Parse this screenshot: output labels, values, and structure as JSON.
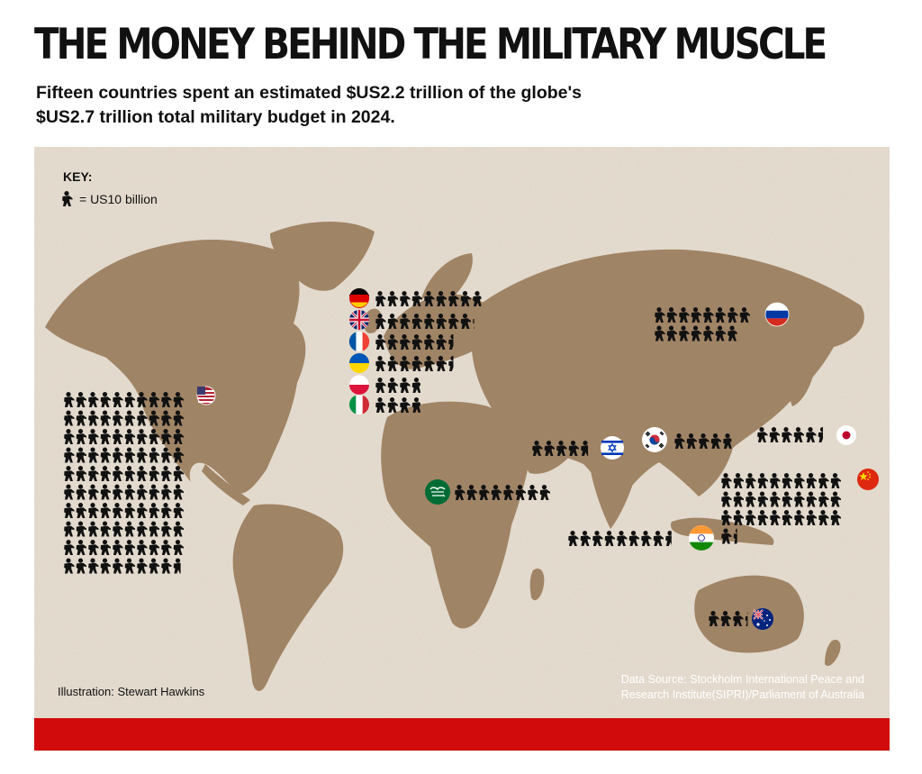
{
  "title": "THE MONEY BEHIND THE MILITARY MUSCLE",
  "subtitle": "Fifteen countries spent an estimated $US2.2 trillion of the globe's $US2.7 trillion total military budget in 2024.",
  "key": {
    "title": "KEY:",
    "label": "= US10 billion"
  },
  "credit": "Illustration: Stewart Hawkins",
  "source": "Data Source: Stockholm International Peace and Research Institute(SIPRI)/Parliament of Australia",
  "colors": {
    "accent_red": "#d10b0b",
    "map_land": "#a08466",
    "map_background": "#e9e1d5",
    "icon": "#111111"
  },
  "chart_data": {
    "type": "table",
    "unit": "US$ billion",
    "icon_value": 10,
    "icon_name": "soldier-icon",
    "series": [
      {
        "country": "United States",
        "flag": "us-flag-icon",
        "value": 997
      },
      {
        "country": "China",
        "flag": "china-flag-icon",
        "value": 314
      },
      {
        "country": "Russia",
        "flag": "russia-flag-icon",
        "value": 149
      },
      {
        "country": "Germany",
        "flag": "germany-flag-icon",
        "value": 88
      },
      {
        "country": "India",
        "flag": "india-flag-icon",
        "value": 86
      },
      {
        "country": "United Kingdom",
        "flag": "uk-flag-icon",
        "value": 82
      },
      {
        "country": "Saudi Arabia",
        "flag": "saudi-flag-icon",
        "value": 80
      },
      {
        "country": "Ukraine",
        "flag": "ukraine-flag-icon",
        "value": 65
      },
      {
        "country": "France",
        "flag": "france-flag-icon",
        "value": 65
      },
      {
        "country": "Japan",
        "flag": "japan-flag-icon",
        "value": 55
      },
      {
        "country": "South Korea",
        "flag": "south-korea-flag-icon",
        "value": 48
      },
      {
        "country": "Israel",
        "flag": "israel-flag-icon",
        "value": 47
      },
      {
        "country": "Poland",
        "flag": "poland-flag-icon",
        "value": 38
      },
      {
        "country": "Italy",
        "flag": "italy-flag-icon",
        "value": 38
      },
      {
        "country": "Australia",
        "flag": "australia-flag-icon",
        "value": 33
      }
    ]
  }
}
